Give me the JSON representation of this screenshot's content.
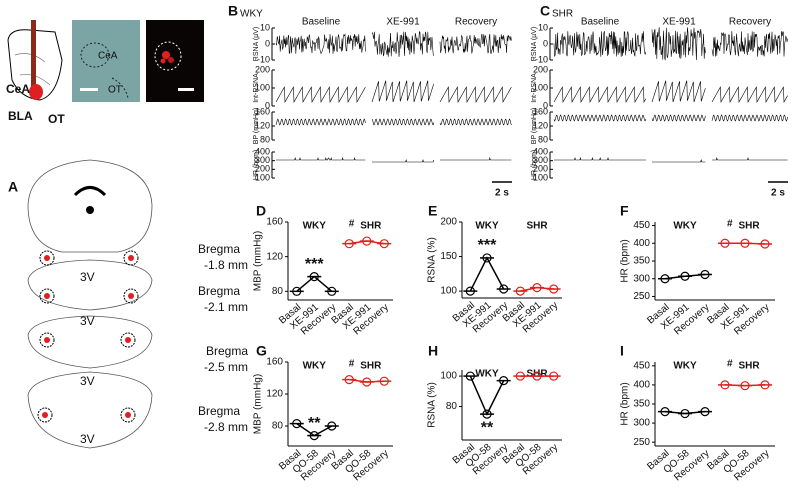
{
  "panel_a": {
    "letter": "A",
    "slice_labels": [
      "CeA",
      "BLA",
      "OT"
    ],
    "image_labels": [
      "CeA",
      "OT"
    ],
    "sections": [
      {
        "label": "3V",
        "bregma": "Bregma",
        "level": "-1.8 mm"
      },
      {
        "label": "3V",
        "bregma": "Bregma",
        "level": "-2.1 mm"
      },
      {
        "label": "3V",
        "bregma": "Bregma",
        "level": "-2.5 mm"
      },
      {
        "label": "3V",
        "bregma": "Bregma",
        "level": "-2.8 mm"
      }
    ]
  },
  "traces": [
    {
      "letter": "B",
      "strain": "WKY",
      "conditions": [
        "Baseline",
        "XE-991",
        "Recovery"
      ],
      "scale": "2 s",
      "rows": [
        {
          "label": "RSNA (µV)",
          "ticks": [
            10,
            0,
            -10
          ]
        },
        {
          "label": "Int-RSNA",
          "ticks": [
            200,
            100,
            0
          ]
        },
        {
          "label": "BP (mmHg)",
          "ticks": [
            160,
            120,
            80
          ]
        },
        {
          "label": "HR (bpm)",
          "ticks": [
            400,
            300,
            200,
            100
          ]
        }
      ]
    },
    {
      "letter": "C",
      "strain": "SHR",
      "conditions": [
        "Baseline",
        "XE-991",
        "Recovery"
      ],
      "scale": "2 s",
      "rows": [
        {
          "label": "RSNA (µV)",
          "ticks": [
            10,
            0,
            -10
          ]
        },
        {
          "label": "Int-RSNA",
          "ticks": [
            200,
            100,
            0
          ]
        },
        {
          "label": "BP (mmHg)",
          "ticks": [
            160,
            120,
            80
          ]
        },
        {
          "label": "HR (bpm)",
          "ticks": [
            400,
            300,
            200,
            100
          ]
        }
      ]
    }
  ],
  "chart_data": [
    {
      "type": "line",
      "letter": "D",
      "ylabel": "MBP (mmHg)",
      "categories": [
        "Basal",
        "XE-991",
        "Recovery",
        "Basal",
        "XE-991",
        "Recovery"
      ],
      "series": [
        {
          "name": "WKY",
          "color": "#000000",
          "values": [
            80,
            97,
            80,
            null,
            null,
            null
          ]
        },
        {
          "name": "SHR",
          "color": "#e0201c",
          "values": [
            null,
            null,
            null,
            135,
            138,
            135
          ]
        }
      ],
      "ylim": [
        70,
        160
      ],
      "yticks": [
        80,
        120,
        160
      ],
      "significance": "***",
      "significance_below": false,
      "group_mark": "#"
    },
    {
      "type": "line",
      "letter": "E",
      "ylabel": "RSNA (%)",
      "categories": [
        "Basal",
        "XE-991",
        "Recovery",
        "Basal",
        "XE-991",
        "Recovery"
      ],
      "series": [
        {
          "name": "WKY",
          "color": "#000000",
          "values": [
            100,
            148,
            103,
            null,
            null,
            null
          ]
        },
        {
          "name": "SHR",
          "color": "#e0201c",
          "values": [
            null,
            null,
            null,
            100,
            105,
            103
          ]
        }
      ],
      "ylim": [
        90,
        200
      ],
      "yticks": [
        100,
        150,
        200
      ],
      "significance": "***",
      "significance_below": false
    },
    {
      "type": "line",
      "letter": "F",
      "ylabel": "HR (bpm)",
      "categories": [
        "Basal",
        "XE-991",
        "Recovery",
        "Basal",
        "XE-991",
        "Recovery"
      ],
      "series": [
        {
          "name": "WKY",
          "color": "#000000",
          "values": [
            300,
            307,
            312,
            null,
            null,
            null
          ]
        },
        {
          "name": "SHR",
          "color": "#e0201c",
          "values": [
            null,
            null,
            null,
            400,
            400,
            398
          ]
        }
      ],
      "ylim": [
        240,
        460
      ],
      "yticks": [
        250,
        300,
        350,
        400,
        450
      ],
      "group_mark": "#"
    },
    {
      "type": "line",
      "letter": "G",
      "ylabel": "MBP (mmHg)",
      "categories": [
        "Basal",
        "QO-58",
        "Recovery",
        "Basal",
        "QO-58",
        "Recovery"
      ],
      "series": [
        {
          "name": "WKY",
          "color": "#000000",
          "values": [
            83,
            68,
            80,
            null,
            null,
            null
          ]
        },
        {
          "name": "SHR",
          "color": "#e0201c",
          "values": [
            null,
            null,
            null,
            138,
            135,
            136
          ]
        }
      ],
      "ylim": [
        55,
        160
      ],
      "yticks": [
        80,
        120,
        160
      ],
      "significance": "**",
      "significance_below": false,
      "group_mark": "#"
    },
    {
      "type": "line",
      "letter": "H",
      "ylabel": "RSNA (%)",
      "categories": [
        "Basal",
        "QO-58",
        "Recovery",
        "Basal",
        "QO-58",
        "Recovery"
      ],
      "series": [
        {
          "name": "WKY",
          "color": "#000000",
          "values": [
            100,
            75,
            97,
            null,
            null,
            null
          ]
        },
        {
          "name": "SHR",
          "color": "#e0201c",
          "values": [
            null,
            null,
            null,
            100,
            100,
            100
          ]
        }
      ],
      "ylim": [
        58,
        104
      ],
      "yticks": [
        80,
        100
      ],
      "significance": "**",
      "significance_below": true
    },
    {
      "type": "line",
      "letter": "I",
      "ylabel": "HR (bpm)",
      "categories": [
        "Basal",
        "QO-58",
        "Recovery",
        "Basal",
        "QO-58",
        "Recovery"
      ],
      "series": [
        {
          "name": "WKY",
          "color": "#000000",
          "values": [
            330,
            325,
            330,
            null,
            null,
            null
          ]
        },
        {
          "name": "SHR",
          "color": "#e0201c",
          "values": [
            null,
            null,
            null,
            400,
            398,
            400
          ]
        }
      ],
      "ylim": [
        240,
        460
      ],
      "yticks": [
        250,
        300,
        350,
        400,
        450
      ],
      "group_mark": "#"
    }
  ]
}
